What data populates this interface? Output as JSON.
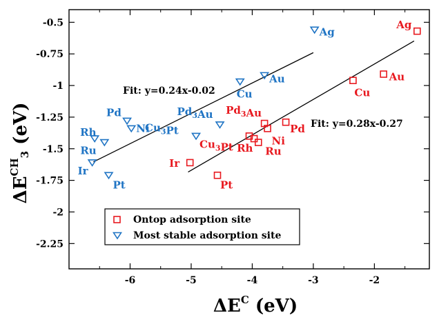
{
  "chart_data": {
    "type": "scatter",
    "title": "",
    "xlabel": {
      "prefix": "ΔE",
      "superscript": "C",
      "suffix": " (eV)"
    },
    "ylabel": {
      "prefix": "ΔE",
      "superscript": "CH",
      "subscript": "3",
      "suffix": " (eV)"
    },
    "xlim": [
      -7,
      -1.1
    ],
    "ylim": [
      -2.45,
      -0.4
    ],
    "xticks": [
      {
        "value": -6,
        "label": "-6"
      },
      {
        "value": -5,
        "label": "-5"
      },
      {
        "value": -4,
        "label": "-4"
      },
      {
        "value": -3,
        "label": "-3"
      },
      {
        "value": -2,
        "label": "-2"
      }
    ],
    "yticks": [
      {
        "value": -0.5,
        "label": "-0.5"
      },
      {
        "value": -0.75,
        "label": "-0.75"
      },
      {
        "value": -1,
        "label": "-1"
      },
      {
        "value": -1.25,
        "label": "-1.25"
      },
      {
        "value": -1.5,
        "label": "-1.5"
      },
      {
        "value": -1.75,
        "label": "-1.75"
      },
      {
        "value": -2,
        "label": "-2"
      },
      {
        "value": -2.25,
        "label": "-2.25"
      }
    ],
    "colors": {
      "ontop": "#e8191f",
      "stable": "#1f74c4",
      "axis": "#000000"
    },
    "series": [
      {
        "name": "Ontop adsorption site",
        "marker": "square",
        "color": "#e8191f",
        "points": [
          {
            "label": "Ag",
            "x": -1.3,
            "y": -0.57
          },
          {
            "label": "Au",
            "x": -1.85,
            "y": -0.91
          },
          {
            "label": "Cu",
            "x": -2.35,
            "y": -0.96
          },
          {
            "label": "Pd",
            "x": -3.45,
            "y": -1.29
          },
          {
            "label": "Pd3Au",
            "x": -3.8,
            "y": -1.3
          },
          {
            "label": "Ni",
            "x": -3.75,
            "y": -1.34
          },
          {
            "label": "Cu3Pt",
            "x": -4.05,
            "y": -1.4
          },
          {
            "label": "Rh",
            "x": -3.97,
            "y": -1.42
          },
          {
            "label": "Ru",
            "x": -3.9,
            "y": -1.45
          },
          {
            "label": "Ir",
            "x": -5.02,
            "y": -1.61
          },
          {
            "label": "Pt",
            "x": -4.57,
            "y": -1.71
          }
        ]
      },
      {
        "name": "Most stable adsorption site",
        "marker": "triangle-down",
        "color": "#1f74c4",
        "points": [
          {
            "label": "Ag",
            "x": -2.98,
            "y": -0.56
          },
          {
            "label": "Au",
            "x": -3.8,
            "y": -0.92
          },
          {
            "label": "Cu",
            "x": -4.2,
            "y": -0.97
          },
          {
            "label": "Pd",
            "x": -6.05,
            "y": -1.28
          },
          {
            "label": "Ni",
            "x": -5.98,
            "y": -1.34
          },
          {
            "label": "Pd3Au",
            "x": -4.53,
            "y": -1.31
          },
          {
            "label": "Cu3Pt",
            "x": -4.92,
            "y": -1.4
          },
          {
            "label": "Rh",
            "x": -6.58,
            "y": -1.42
          },
          {
            "label": "Ru",
            "x": -6.42,
            "y": -1.45
          },
          {
            "label": "Ir",
            "x": -6.62,
            "y": -1.61
          },
          {
            "label": "Pt",
            "x": -6.35,
            "y": -1.71
          }
        ]
      }
    ],
    "fits": [
      {
        "label": "Fit: y=0.24x-0.02",
        "slope": 0.24,
        "intercept": -0.02,
        "x_range": [
          -6.6,
          -3.0
        ],
        "placement": "upper-left"
      },
      {
        "label": "Fit: y=0.28x-0.27",
        "slope": 0.28,
        "intercept": -0.27,
        "x_range": [
          -5.05,
          -1.35
        ],
        "placement": "right"
      }
    ],
    "grid": false,
    "legend": {
      "placement": "bottom-left",
      "entries": [
        "Ontop adsorption site",
        "Most stable adsorption site"
      ]
    }
  }
}
